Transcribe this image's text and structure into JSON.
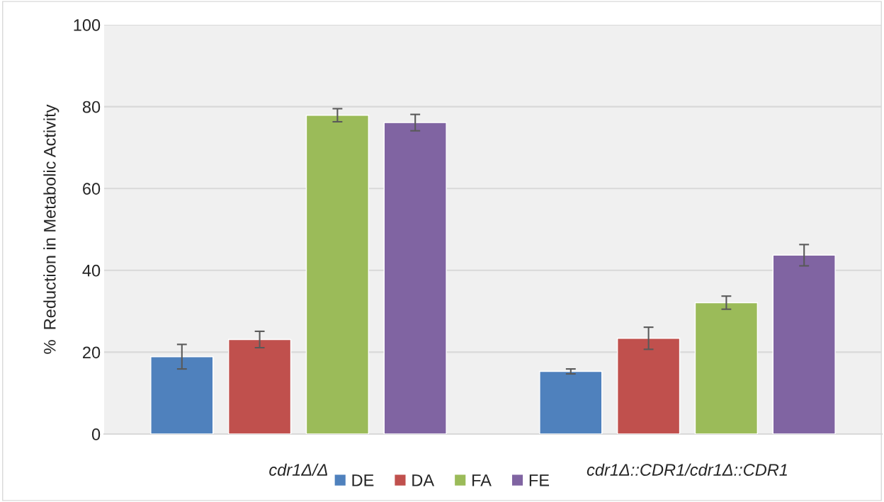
{
  "chart_data": {
    "type": "bar",
    "ylabel": "%  Reduction in Metabolic Activity",
    "categories": [
      "cdr1Δ/Δ",
      "cdr1Δ::CDR1/cdr1Δ::CDR1"
    ],
    "series": [
      {
        "name": "DE",
        "color": "#4f81bd",
        "values": [
          18.9,
          15.3
        ],
        "errors": [
          3.0,
          0.6
        ]
      },
      {
        "name": "DA",
        "color": "#c0504d",
        "values": [
          23.1,
          23.4
        ],
        "errors": [
          2.0,
          2.7
        ]
      },
      {
        "name": "FA",
        "color": "#9bbb59",
        "values": [
          77.9,
          32.1
        ],
        "errors": [
          1.6,
          1.6
        ]
      },
      {
        "name": "FE",
        "color": "#8064a2",
        "values": [
          76.1,
          43.7
        ],
        "errors": [
          2.0,
          2.6
        ]
      }
    ],
    "ylim": [
      0,
      100
    ],
    "yticks": [
      0,
      20,
      40,
      60,
      80,
      100
    ],
    "grid": "y",
    "legend": "bottom"
  }
}
